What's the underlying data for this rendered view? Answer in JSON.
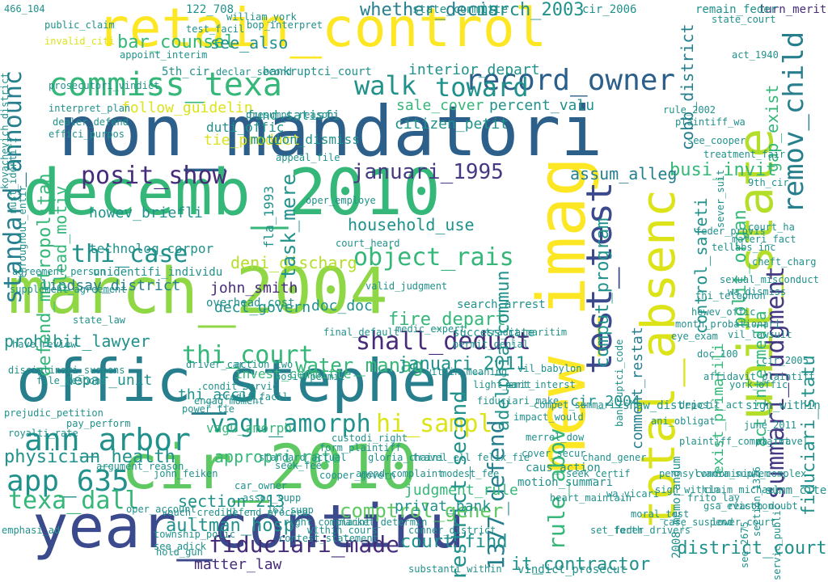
{
  "palette": {
    "dark_blue": "#2c5f8a",
    "navy": "#3b4a8c",
    "indigo": "#443983",
    "purple": "#472c7a",
    "teal": "#21918c",
    "teal_dark": "#277f8e",
    "green": "#35b779",
    "green_light": "#5ec962",
    "lime": "#8fd744",
    "lime_light": "#b5de2b",
    "yellow": "#fde725",
    "yellow_green": "#dce319"
  },
  "words": [
    {
      "text": "non_mandatori",
      "color": "dark_blue"
    },
    {
      "text": "retain_control",
      "color": "yellow"
    },
    {
      "text": "decemb_2010",
      "color": "green"
    },
    {
      "text": "march_2004",
      "color": "lime"
    },
    {
      "text": "offic_stephen",
      "color": "teal_dark"
    },
    {
      "text": "cir_2010",
      "color": "green_light"
    },
    {
      "text": "year_continu",
      "color": "navy"
    },
    {
      "text": "new_imag",
      "color": "yellow"
    },
    {
      "text": "unit_state",
      "color": "lime_light"
    },
    {
      "text": "total_absenc",
      "color": "yellow_green"
    },
    {
      "text": "test_test",
      "color": "navy"
    },
    {
      "text": "summari_judgment",
      "color": "indigo"
    },
    {
      "text": "remov_child",
      "color": "teal_dark"
    },
    {
      "text": "commiss_texa",
      "color": "green"
    },
    {
      "text": "record_owner",
      "color": "dark_blue"
    },
    {
      "text": "standard_announc",
      "color": "teal_dark"
    },
    {
      "text": "posit_show",
      "color": "purple"
    },
    {
      "text": "januari_1995",
      "color": "indigo"
    },
    {
      "text": "thi_case",
      "color": "teal"
    },
    {
      "text": "object_rais",
      "color": "green"
    },
    {
      "text": "shall_deduct",
      "color": "purple"
    },
    {
      "text": "thi_court",
      "color": "green"
    },
    {
      "text": "ann_arbor",
      "color": "teal"
    },
    {
      "text": "vagu_amorph",
      "color": "teal"
    },
    {
      "text": "app_635",
      "color": "teal"
    },
    {
      "text": "texa_dall",
      "color": "green"
    },
    {
      "text": "hi_sampl",
      "color": "yellow_green"
    },
    {
      "text": "1377_defend",
      "color": "teal_dark"
    },
    {
      "text": "restrict_second",
      "color": "teal"
    },
    {
      "text": "rule_abov",
      "color": "green"
    },
    {
      "text": "fiduciari_made",
      "color": "purple"
    },
    {
      "text": "aultman_hosp",
      "color": "teal"
    },
    {
      "text": "comptrol_gener",
      "color": "green_light"
    },
    {
      "text": "walk",
      "color": "teal"
    },
    {
      "text": "toward",
      "color": "teal"
    },
    {
      "text": "whether_decis",
      "color": "teal_dark"
    },
    {
      "text": "march_2003",
      "color": "teal"
    },
    {
      "text": "bar_counsel",
      "color": "green"
    },
    {
      "text": "see_also",
      "color": "teal"
    },
    {
      "text": "prohibit_lawyer",
      "color": "teal"
    },
    {
      "text": "lindsay_district",
      "color": "teal_dark"
    },
    {
      "text": "physician_health",
      "color": "teal"
    },
    {
      "text": "fire_depart",
      "color": "green"
    },
    {
      "text": "court_find",
      "color": "teal"
    },
    {
      "text": "section_213",
      "color": "teal"
    },
    {
      "text": "busi_invit",
      "color": "green"
    },
    {
      "text": "assum_alleg",
      "color": "teal_dark"
    },
    {
      "text": "water_manag",
      "color": "green"
    },
    {
      "text": "januari_2011",
      "color": "teal"
    },
    {
      "text": "cobb_district",
      "color": "teal_dark"
    },
    {
      "text": "comment_restat",
      "color": "teal_dark"
    },
    {
      "text": "district_court",
      "color": "teal"
    },
    {
      "text": "act_intermedia",
      "color": "green"
    },
    {
      "text": "fiduciari_statu",
      "color": "teal"
    },
    {
      "text": "polit_organ",
      "color": "green"
    },
    {
      "text": "adelphia_commun",
      "color": "teal"
    },
    {
      "text": "comput_program",
      "color": "teal"
    },
    {
      "text": "control_safeti",
      "color": "teal"
    },
    {
      "text": "john_smith",
      "color": "purple"
    },
    {
      "text": "decl_govern",
      "color": "teal"
    },
    {
      "text": "sale_cover",
      "color": "green"
    },
    {
      "text": "percent_valu",
      "color": "teal"
    },
    {
      "text": "deni_discharg",
      "color": "lime_light"
    },
    {
      "text": "appropri_rate",
      "color": "green"
    },
    {
      "text": "depar_unit",
      "color": "teal"
    },
    {
      "text": "it_contractor",
      "color": "teal"
    },
    {
      "text": "gap_exist",
      "color": "green"
    },
    {
      "text": "matter_law",
      "color": "purple"
    },
    {
      "text": "privat_bank",
      "color": "teal"
    },
    {
      "text": "doc_doc",
      "color": "teal"
    },
    {
      "text": "household_use",
      "color": "teal"
    },
    {
      "text": "citizen_petit",
      "color": "teal"
    },
    {
      "text": "interior_depart",
      "color": "teal"
    },
    {
      "text": "defend_metropolitan",
      "color": "green"
    },
    {
      "text": "plead_motiv",
      "color": "green"
    },
    {
      "text": "judgment_rule",
      "color": "green"
    },
    {
      "text": "cir_2004",
      "color": "teal"
    },
    {
      "text": "task_mere",
      "color": "teal"
    },
    {
      "text": "thi_accid",
      "color": "teal"
    },
    {
      "text": "tie_product",
      "color": "yellow_green"
    },
    {
      "text": "follow_guidelin",
      "color": "yellow_green"
    },
    {
      "text": "fund_satisfi",
      "color": "teal"
    },
    {
      "text": "motion_dismiss",
      "color": "teal"
    },
    {
      "text": "howev_briefli",
      "color": "teal"
    },
    {
      "text": "technolog_corpor",
      "color": "teal"
    },
    {
      "text": "unidentifi_individu",
      "color": "teal"
    },
    {
      "text": "duti_offic",
      "color": "teal"
    },
    {
      "text": "invest_committe",
      "color": "green"
    },
    {
      "text": "fla_1993",
      "color": "teal"
    },
    {
      "text": "shaw_district",
      "color": "teal"
    },
    {
      "text": "2008_memorandum",
      "color": "teal"
    },
    {
      "text": "summ_cite",
      "color": "teal"
    },
    {
      "text": "sign_within",
      "color": "teal"
    },
    {
      "text": "success_rate",
      "color": "teal"
    },
    {
      "text": "search_arrest",
      "color": "teal"
    },
    {
      "text": "overhead_cost",
      "color": "teal"
    },
    {
      "text": "vindict_prosecut",
      "color": "teal"
    },
    {
      "text": "caus_action",
      "color": "teal"
    },
    {
      "text": "motion_summari",
      "color": "teal"
    },
    {
      "text": "exist_primarili",
      "color": "green"
    },
    {
      "text": "vagu_amorph",
      "color": "green"
    },
    {
      "text": "cir_2006",
      "color": "teal"
    },
    {
      "text": "state_committe",
      "color": "teal"
    },
    {
      "text": "466_104",
      "color": "teal"
    },
    {
      "text": "122_708",
      "color": "teal"
    },
    {
      "text": "turn_merit",
      "color": "purple"
    },
    {
      "text": "remain_feder",
      "color": "teal"
    },
    {
      "text": "public_claim",
      "color": "teal"
    },
    {
      "text": "invalid_citi",
      "color": "yellow_green"
    },
    {
      "text": "kovachevich_district",
      "color": "teal"
    },
    {
      "text": "prosecutori_vindict",
      "color": "teal"
    },
    {
      "text": "5th_cir",
      "color": "teal"
    },
    {
      "text": "bankruptci_court",
      "color": "teal"
    },
    {
      "text": "state_court",
      "color": "teal"
    },
    {
      "text": "act_1940",
      "color": "teal"
    },
    {
      "text": "9th_cir",
      "color": "teal"
    },
    {
      "text": "court_ha",
      "color": "teal"
    },
    {
      "text": "materi_fact",
      "color": "teal"
    },
    {
      "text": "cheft_charg",
      "color": "teal"
    },
    {
      "text": "vil_lawsuit",
      "color": "teal"
    },
    {
      "text": "doc_100",
      "color": "teal"
    },
    {
      "text": "affidavit_plaintiff",
      "color": "teal"
    },
    {
      "text": "york_offic",
      "color": "teal"
    },
    {
      "text": "cir_2005",
      "color": "teal"
    },
    {
      "text": "june_2011",
      "color": "teal"
    },
    {
      "text": "wa_travel",
      "color": "teal"
    },
    {
      "text": "plaintiff_complaint",
      "color": "teal"
    },
    {
      "text": "wa_vicari",
      "color": "teal"
    },
    {
      "text": "pennsylvania_suprem",
      "color": "teal"
    },
    {
      "text": "section_1326",
      "color": "teal"
    },
    {
      "text": "claim_michael",
      "color": "teal"
    },
    {
      "text": "servic_public",
      "color": "teal"
    },
    {
      "text": "see_2675",
      "color": "teal"
    },
    {
      "text": "emphasi_ad",
      "color": "teal"
    },
    {
      "text": "william_york",
      "color": "teal"
    },
    {
      "text": "bop_interpret",
      "color": "teal"
    },
    {
      "text": "appoint_interim",
      "color": "teal"
    },
    {
      "text": "interpret_plan",
      "color": "teal"
    },
    {
      "text": "dealer_defend",
      "color": "teal"
    },
    {
      "text": "effici_purpos",
      "color": "teal"
    },
    {
      "text": "must_identifi",
      "color": "teal"
    },
    {
      "text": "throughout_entir",
      "color": "teal"
    },
    {
      "text": "agreement_person",
      "color": "teal"
    },
    {
      "text": "supplement_agreement",
      "color": "teal"
    },
    {
      "text": "state_law",
      "color": "teal"
    },
    {
      "text": "have_review",
      "color": "teal"
    },
    {
      "text": "disciplinari_suspens",
      "color": "teal"
    },
    {
      "text": "prejudic_petition",
      "color": "teal"
    },
    {
      "text": "royalti_rate",
      "color": "teal"
    },
    {
      "text": "john_feiken",
      "color": "teal"
    },
    {
      "text": "township_polic",
      "color": "teal"
    },
    {
      "text": "see_adick",
      "color": "teal"
    },
    {
      "text": "car_owner",
      "color": "teal"
    },
    {
      "text": "assoc_supp",
      "color": "teal"
    },
    {
      "text": "163_supp",
      "color": "teal"
    },
    {
      "text": "vouch_credibl",
      "color": "teal"
    },
    {
      "text": "defend_proceed",
      "color": "teal"
    },
    {
      "text": "right_complaint",
      "color": "teal"
    },
    {
      "text": "form_plaintiff",
      "color": "teal"
    },
    {
      "text": "custodi_right",
      "color": "teal"
    },
    {
      "text": "conner_district",
      "color": "teal"
    },
    {
      "text": "substanti_within",
      "color": "teal"
    },
    {
      "text": "cooper_govern",
      "color": "teal"
    },
    {
      "text": "seek_fee",
      "color": "teal"
    },
    {
      "text": "standard_actual",
      "color": "teal"
    },
    {
      "text": "condit_servic",
      "color": "teal"
    },
    {
      "text": "engag_moment",
      "color": "teal"
    },
    {
      "text": "power_tie",
      "color": "teal"
    },
    {
      "text": "driver_car",
      "color": "teal"
    },
    {
      "text": "credit_facil",
      "color": "teal"
    },
    {
      "text": "posit_permit",
      "color": "teal"
    },
    {
      "text": "action_two",
      "color": "teal"
    },
    {
      "text": "final_default",
      "color": "teal"
    },
    {
      "text": "permit_denial",
      "color": "teal"
    },
    {
      "text": "tradit_maritim",
      "color": "teal"
    },
    {
      "text": "light_emit",
      "color": "teal"
    },
    {
      "text": "fiduciari_make",
      "color": "teal"
    },
    {
      "text": "impact_would",
      "color": "teal"
    },
    {
      "text": "part_interst",
      "color": "teal"
    },
    {
      "text": "vil_babylon",
      "color": "teal"
    },
    {
      "text": "compet_summari",
      "color": "teal"
    },
    {
      "text": "merrel_dow",
      "color": "teal"
    },
    {
      "text": "cover_secur",
      "color": "teal"
    },
    {
      "text": "contest_statement",
      "color": "teal"
    },
    {
      "text": "within_cours",
      "color": "teal"
    },
    {
      "text": "market_determin",
      "color": "teal"
    },
    {
      "text": "amend_complaint",
      "color": "teal"
    },
    {
      "text": "gloria_chaini",
      "color": "teal"
    },
    {
      "text": "travel_ell",
      "color": "teal"
    },
    {
      "text": "modest_fee",
      "color": "teal"
    },
    {
      "text": "felix_fie",
      "color": "teal"
    },
    {
      "text": "heart_maintain",
      "color": "teal"
    },
    {
      "text": "seek_certif",
      "color": "teal"
    },
    {
      "text": "chand_gener",
      "color": "teal"
    },
    {
      "text": "set_forth",
      "color": "teal"
    },
    {
      "text": "feder_drivers",
      "color": "teal"
    },
    {
      "text": "moral_test",
      "color": "teal"
    },
    {
      "text": "case_suspend",
      "color": "teal"
    },
    {
      "text": "frito_lay",
      "color": "teal"
    },
    {
      "text": "rule_2002",
      "color": "teal"
    },
    {
      "text": "plaintiff_wa",
      "color": "teal"
    },
    {
      "text": "see_cooper",
      "color": "teal"
    },
    {
      "text": "treatment_fair",
      "color": "teal"
    },
    {
      "text": "sever_suit",
      "color": "teal"
    },
    {
      "text": "feder_provis",
      "color": "teal"
    },
    {
      "text": "tellabs_inc",
      "color": "teal"
    },
    {
      "text": "sexual_misconduct",
      "color": "teal"
    },
    {
      "text": "wa_dismiss",
      "color": "teal"
    },
    {
      "text": "thi_telephon",
      "color": "teal"
    },
    {
      "text": "howev_offic",
      "color": "teal"
    },
    {
      "text": "month_probationari",
      "color": "teal"
    },
    {
      "text": "eye_exam",
      "color": "teal"
    },
    {
      "text": "bankruptci_code",
      "color": "teal"
    },
    {
      "text": "ani_obligat",
      "color": "teal"
    },
    {
      "text": "sign_within",
      "color": "teal"
    },
    {
      "text": "condominium_complex",
      "color": "teal"
    },
    {
      "text": "gsa_eviction",
      "color": "teal"
    },
    {
      "text": "lower_court",
      "color": "teal"
    },
    {
      "text": "reason_doubt",
      "color": "teal"
    },
    {
      "text": "deposit_act",
      "color": "teal"
    },
    {
      "text": "file_respons",
      "color": "teal"
    },
    {
      "text": "pay_perform",
      "color": "teal"
    },
    {
      "text": "argument_reason",
      "color": "teal"
    },
    {
      "text": "oper_account",
      "color": "teal"
    },
    {
      "text": "hold_gun",
      "color": "teal"
    },
    {
      "text": "test_facil",
      "color": "teal"
    },
    {
      "text": "declar_second",
      "color": "teal"
    },
    {
      "text": "presumpt_reason",
      "color": "teal"
    },
    {
      "text": "appeal_file",
      "color": "teal"
    },
    {
      "text": "oper_employe",
      "color": "teal"
    },
    {
      "text": "court_heard",
      "color": "teal"
    },
    {
      "text": "valid_judgment",
      "color": "teal"
    },
    {
      "text": "medic_expert",
      "color": "teal"
    },
    {
      "text": "within_meaning",
      "color": "teal"
    }
  ]
}
